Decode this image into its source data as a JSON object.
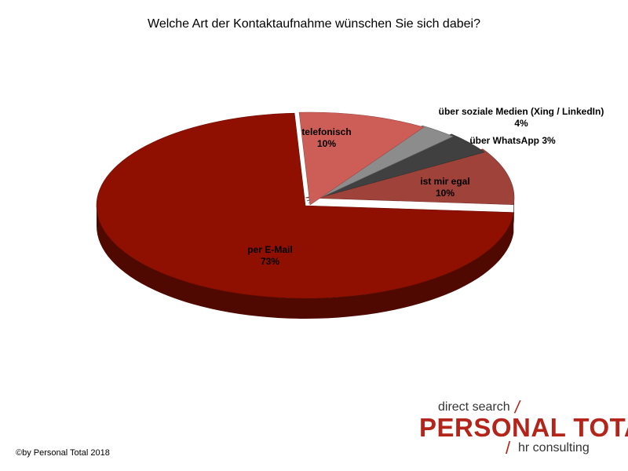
{
  "chart_data": {
    "type": "pie",
    "title": "Welche Art der Kontaktaufnahme wünschen Sie sich dabei?",
    "slices": [
      {
        "label": "per E-Mail",
        "value": 73,
        "value_text": "73%",
        "color": "#8f1000"
      },
      {
        "label": "telefonisch",
        "value": 10,
        "value_text": "10%",
        "color": "#9e423a"
      },
      {
        "label": "über soziale Medien (Xing / LinkedIn)",
        "value": 4,
        "value_text": "4%",
        "color": "#404040"
      },
      {
        "label": "über WhatsApp",
        "value": 3,
        "value_text": "3%",
        "color": "#8c8c8c"
      },
      {
        "label": "ist mir egal",
        "value": 10,
        "value_text": "10%",
        "color": "#cc5e57"
      }
    ],
    "style": "3d-exploded-tilted"
  },
  "footer": {
    "copyright": "©by Personal Total 2018"
  },
  "logo": {
    "top_text": "direct search",
    "brand_text": "PERSONAL TOTAL",
    "bottom_text": "hr consulting",
    "slash": "/",
    "color": "#b3241a"
  }
}
